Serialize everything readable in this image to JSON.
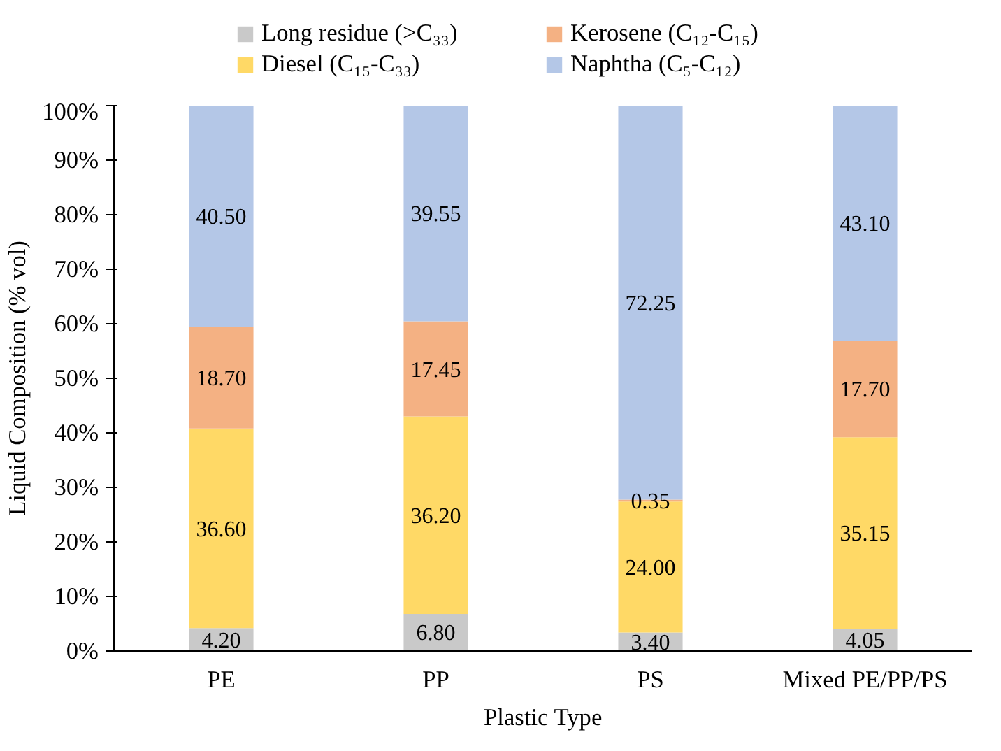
{
  "chart_data": {
    "type": "bar",
    "stacked": true,
    "xlabel": "Plastic Type",
    "ylabel": "Liquid Composition (% vol)",
    "categories": [
      "PE",
      "PP",
      "PS",
      "Mixed PE/PP/PS"
    ],
    "ylim": [
      0,
      100
    ],
    "yticks": [
      {
        "value": 0,
        "label": "0%"
      },
      {
        "value": 10,
        "label": "10%"
      },
      {
        "value": 20,
        "label": "20%"
      },
      {
        "value": 30,
        "label": "30%"
      },
      {
        "value": 40,
        "label": "40%"
      },
      {
        "value": 50,
        "label": "50%"
      },
      {
        "value": 60,
        "label": "60%"
      },
      {
        "value": 70,
        "label": "70%"
      },
      {
        "value": 80,
        "label": "80%"
      },
      {
        "value": 90,
        "label": "90%"
      },
      {
        "value": 100,
        "label": "100%"
      }
    ],
    "grid": false,
    "legend": "top",
    "series": [
      {
        "name": "Long residue (>C₃₃)",
        "color": "#c9c9c9",
        "values": [
          4.2,
          6.8,
          3.4,
          4.05
        ],
        "value_labels": [
          "4.20",
          "6.80",
          "3.40",
          "4.05"
        ]
      },
      {
        "name": "Diesel (C₁₅-C₃₃)",
        "color": "#ffd966",
        "values": [
          36.6,
          36.2,
          24.0,
          35.15
        ],
        "value_labels": [
          "36.60",
          "36.20",
          "24.00",
          "35.15"
        ]
      },
      {
        "name": "Kerosene (C₁₂-C₁₅)",
        "color": "#f4b183",
        "values": [
          18.7,
          17.45,
          0.35,
          17.7
        ],
        "value_labels": [
          "18.70",
          "17.45",
          "0.35",
          "17.70"
        ]
      },
      {
        "name": "Naphtha (C₅-C₁₂)",
        "color": "#b4c7e7",
        "values": [
          40.5,
          39.55,
          72.25,
          43.1
        ],
        "value_labels": [
          "40.50",
          "39.55",
          "72.25",
          "43.10"
        ]
      }
    ]
  }
}
